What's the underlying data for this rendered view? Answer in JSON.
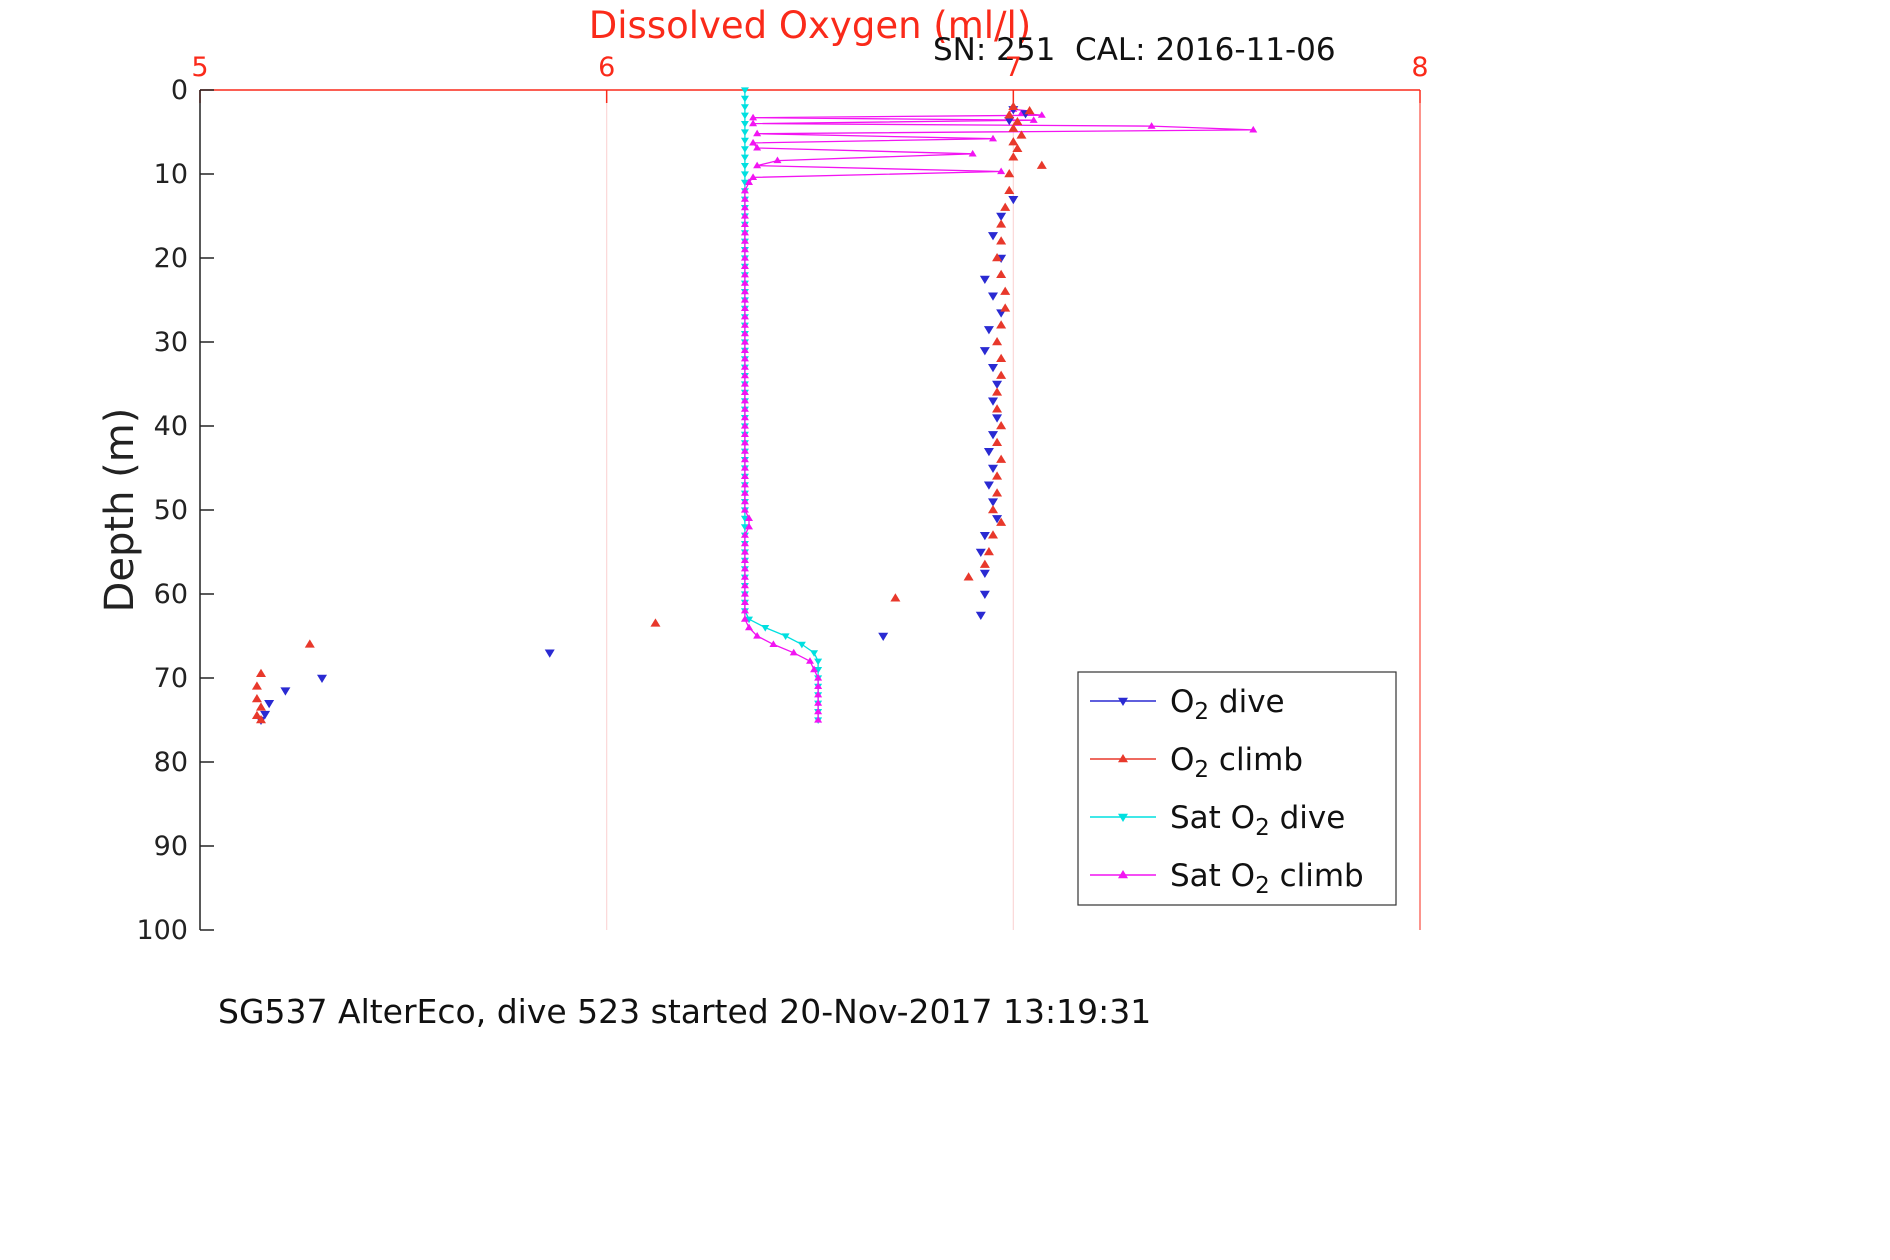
{
  "chart": {
    "title": "Dissolved Oxygen (ml/l)",
    "subtitle": "SN: 251  CAL: 2016-11-06",
    "caption": "SG537 AlterEco, dive 523 started 20-Nov-2017 13:19:31",
    "ylabel": "Depth (m)"
  },
  "chart_data": {
    "type": "scatter",
    "title": "Dissolved Oxygen (ml/l)",
    "subtitle": "SN: 251  CAL: 2016-11-06",
    "caption": "SG537 AlterEco, dive 523 started 20-Nov-2017 13:19:31",
    "xlabel": "Dissolved Oxygen (ml/l)",
    "ylabel": "Depth (m)",
    "xlim": [
      5,
      8
    ],
    "ylim": [
      0,
      100
    ],
    "y_inverted": true,
    "x_ticks": [
      5,
      6,
      7,
      8
    ],
    "y_ticks": [
      0,
      10,
      20,
      30,
      40,
      50,
      60,
      70,
      80,
      90,
      100
    ],
    "grid_x": [
      6,
      7
    ],
    "colors": {
      "axis_x": "#fa2a1a",
      "axis_y": "#222222",
      "grid": "#fbd7d7",
      "text": "#111111"
    },
    "draw_order": [
      2,
      3,
      0,
      1
    ],
    "series": [
      {
        "id": "o2-dive",
        "name": "O2 dive",
        "color": "#2a2ad2",
        "marker": "down",
        "marker_size": 5,
        "line": false,
        "points": [
          [
            2.3,
            7.0
          ],
          [
            2.8,
            7.03
          ],
          [
            3.6,
            6.99
          ],
          [
            13,
            7.0
          ],
          [
            15,
            6.97
          ],
          [
            17.3,
            6.95
          ],
          [
            20,
            6.97
          ],
          [
            22.5,
            6.93
          ],
          [
            24.5,
            6.95
          ],
          [
            26.5,
            6.97
          ],
          [
            28.5,
            6.94
          ],
          [
            31,
            6.93
          ],
          [
            33,
            6.95
          ],
          [
            35,
            6.96
          ],
          [
            37,
            6.95
          ],
          [
            39,
            6.96
          ],
          [
            41,
            6.95
          ],
          [
            43,
            6.94
          ],
          [
            45,
            6.95
          ],
          [
            47,
            6.94
          ],
          [
            49,
            6.95
          ],
          [
            51,
            6.96
          ],
          [
            53,
            6.93
          ],
          [
            55,
            6.92
          ],
          [
            57.5,
            6.93
          ],
          [
            60,
            6.93
          ],
          [
            62.5,
            6.92
          ],
          [
            65,
            6.68
          ],
          [
            67,
            5.86
          ],
          [
            70,
            5.3
          ],
          [
            71.5,
            5.21
          ],
          [
            73,
            5.17
          ],
          [
            74.3,
            5.16
          ],
          [
            75,
            5.15
          ]
        ]
      },
      {
        "id": "o2-climb",
        "name": "O2 climb",
        "color": "#e8382b",
        "marker": "up",
        "marker_size": 5,
        "line": false,
        "points": [
          [
            2,
            7.0
          ],
          [
            2.5,
            7.04
          ],
          [
            3,
            6.99
          ],
          [
            3.8,
            7.01
          ],
          [
            4.6,
            7.0
          ],
          [
            5.4,
            7.02
          ],
          [
            6.2,
            7.0
          ],
          [
            7,
            7.01
          ],
          [
            8,
            7.0
          ],
          [
            9,
            7.07
          ],
          [
            10,
            6.99
          ],
          [
            12,
            6.99
          ],
          [
            14,
            6.98
          ],
          [
            16,
            6.97
          ],
          [
            18,
            6.97
          ],
          [
            20,
            6.96
          ],
          [
            22,
            6.97
          ],
          [
            24,
            6.98
          ],
          [
            26,
            6.98
          ],
          [
            28,
            6.97
          ],
          [
            30,
            6.96
          ],
          [
            32,
            6.97
          ],
          [
            34,
            6.97
          ],
          [
            36,
            6.96
          ],
          [
            38,
            6.96
          ],
          [
            40,
            6.97
          ],
          [
            42,
            6.96
          ],
          [
            44,
            6.97
          ],
          [
            46,
            6.96
          ],
          [
            48,
            6.96
          ],
          [
            50,
            6.95
          ],
          [
            51.5,
            6.97
          ],
          [
            53,
            6.95
          ],
          [
            55,
            6.94
          ],
          [
            56.5,
            6.93
          ],
          [
            58,
            6.89
          ],
          [
            60.5,
            6.71
          ],
          [
            63.5,
            6.12
          ],
          [
            66,
            5.27
          ],
          [
            69.5,
            5.15
          ],
          [
            71,
            5.14
          ],
          [
            72.5,
            5.14
          ],
          [
            73.5,
            5.15
          ],
          [
            74.5,
            5.14
          ],
          [
            75,
            5.15
          ]
        ]
      },
      {
        "id": "sat-o2-dive",
        "name": "Sat O2 dive",
        "color": "#00e0e0",
        "marker": "down",
        "marker_size": 4,
        "line": true,
        "points": [
          [
            0,
            6.34
          ],
          [
            1,
            6.34
          ],
          [
            2,
            6.34
          ],
          [
            3,
            6.34
          ],
          [
            4,
            6.34
          ],
          [
            5,
            6.34
          ],
          [
            6,
            6.34
          ],
          [
            7,
            6.34
          ],
          [
            8,
            6.34
          ],
          [
            9,
            6.34
          ],
          [
            10,
            6.34
          ],
          [
            11,
            6.34
          ],
          [
            12,
            6.34
          ],
          [
            13,
            6.34
          ],
          [
            14,
            6.34
          ],
          [
            15,
            6.34
          ],
          [
            16,
            6.34
          ],
          [
            17,
            6.34
          ],
          [
            18,
            6.34
          ],
          [
            19,
            6.34
          ],
          [
            20,
            6.34
          ],
          [
            21,
            6.34
          ],
          [
            22,
            6.34
          ],
          [
            23,
            6.34
          ],
          [
            24,
            6.34
          ],
          [
            25,
            6.34
          ],
          [
            26,
            6.34
          ],
          [
            27,
            6.34
          ],
          [
            28,
            6.34
          ],
          [
            29,
            6.34
          ],
          [
            30,
            6.34
          ],
          [
            31,
            6.34
          ],
          [
            32,
            6.34
          ],
          [
            33,
            6.34
          ],
          [
            34,
            6.34
          ],
          [
            35,
            6.34
          ],
          [
            36,
            6.34
          ],
          [
            37,
            6.34
          ],
          [
            38,
            6.34
          ],
          [
            39,
            6.34
          ],
          [
            40,
            6.34
          ],
          [
            41,
            6.34
          ],
          [
            42,
            6.34
          ],
          [
            43,
            6.34
          ],
          [
            44,
            6.34
          ],
          [
            45,
            6.34
          ],
          [
            46,
            6.34
          ],
          [
            47,
            6.34
          ],
          [
            48,
            6.34
          ],
          [
            49,
            6.34
          ],
          [
            50,
            6.34
          ],
          [
            51,
            6.34
          ],
          [
            52,
            6.34
          ],
          [
            53,
            6.34
          ],
          [
            54,
            6.34
          ],
          [
            55,
            6.34
          ],
          [
            56,
            6.34
          ],
          [
            57,
            6.34
          ],
          [
            58,
            6.34
          ],
          [
            59,
            6.34
          ],
          [
            60,
            6.34
          ],
          [
            61,
            6.34
          ],
          [
            62,
            6.34
          ],
          [
            63,
            6.35
          ],
          [
            64,
            6.39
          ],
          [
            65,
            6.44
          ],
          [
            66,
            6.48
          ],
          [
            67,
            6.51
          ],
          [
            68,
            6.52
          ],
          [
            69,
            6.52
          ],
          [
            70,
            6.52
          ],
          [
            71,
            6.52
          ],
          [
            72,
            6.52
          ],
          [
            73,
            6.52
          ],
          [
            74,
            6.52
          ],
          [
            75,
            6.52
          ]
        ]
      },
      {
        "id": "sat-o2-climb",
        "name": "Sat O2 climb",
        "color": "#f214f2",
        "marker": "up",
        "marker_size": 4,
        "line": true,
        "points": [
          [
            75,
            6.52
          ],
          [
            74,
            6.52
          ],
          [
            73,
            6.52
          ],
          [
            72,
            6.52
          ],
          [
            71,
            6.52
          ],
          [
            70,
            6.52
          ],
          [
            69,
            6.51
          ],
          [
            68,
            6.5
          ],
          [
            67,
            6.46
          ],
          [
            66,
            6.41
          ],
          [
            65,
            6.37
          ],
          [
            64,
            6.35
          ],
          [
            63,
            6.34
          ],
          [
            62,
            6.34
          ],
          [
            61,
            6.34
          ],
          [
            60,
            6.34
          ],
          [
            59,
            6.34
          ],
          [
            58,
            6.34
          ],
          [
            57,
            6.34
          ],
          [
            56,
            6.34
          ],
          [
            55,
            6.34
          ],
          [
            54,
            6.34
          ],
          [
            53,
            6.34
          ],
          [
            52,
            6.35
          ],
          [
            51,
            6.35
          ],
          [
            50,
            6.34
          ],
          [
            49,
            6.34
          ],
          [
            48,
            6.34
          ],
          [
            47,
            6.34
          ],
          [
            46,
            6.34
          ],
          [
            45,
            6.34
          ],
          [
            44,
            6.34
          ],
          [
            43,
            6.34
          ],
          [
            42,
            6.34
          ],
          [
            41,
            6.34
          ],
          [
            40,
            6.34
          ],
          [
            39,
            6.34
          ],
          [
            38,
            6.34
          ],
          [
            37,
            6.34
          ],
          [
            36,
            6.34
          ],
          [
            35,
            6.34
          ],
          [
            34,
            6.34
          ],
          [
            33,
            6.34
          ],
          [
            32,
            6.34
          ],
          [
            31,
            6.34
          ],
          [
            30,
            6.34
          ],
          [
            29,
            6.34
          ],
          [
            28,
            6.34
          ],
          [
            27,
            6.34
          ],
          [
            26,
            6.34
          ],
          [
            25,
            6.34
          ],
          [
            24,
            6.34
          ],
          [
            23,
            6.34
          ],
          [
            22,
            6.34
          ],
          [
            21,
            6.34
          ],
          [
            20,
            6.34
          ],
          [
            19,
            6.34
          ],
          [
            18,
            6.34
          ],
          [
            17,
            6.34
          ],
          [
            16,
            6.34
          ],
          [
            15,
            6.34
          ],
          [
            14,
            6.34
          ],
          [
            13,
            6.34
          ],
          [
            12,
            6.34
          ],
          [
            11,
            6.35
          ],
          [
            10.4,
            6.36
          ],
          [
            9.7,
            6.97
          ],
          [
            9,
            6.37
          ],
          [
            8.4,
            6.42
          ],
          [
            7.6,
            6.9
          ],
          [
            6.9,
            6.37
          ],
          [
            6.3,
            6.36
          ],
          [
            5.8,
            6.95
          ],
          [
            5.2,
            6.37
          ],
          [
            4.75,
            7.59
          ],
          [
            4.3,
            7.34
          ],
          [
            4,
            6.36
          ],
          [
            3.6,
            7.05
          ],
          [
            3.3,
            6.36
          ],
          [
            3,
            7.07
          ],
          [
            2.8,
            7.02
          ],
          [
            2.5,
            7.04
          ],
          [
            2.3,
            7.0
          ]
        ]
      }
    ],
    "legend": {
      "position": "bottom-right",
      "entries": [
        {
          "id": "o2-dive",
          "pre": "O",
          "sub": "2",
          "post": " dive",
          "color": "#2a2ad2",
          "marker": "down"
        },
        {
          "id": "o2-climb",
          "pre": "O",
          "sub": "2",
          "post": " climb",
          "color": "#e8382b",
          "marker": "up"
        },
        {
          "id": "sat-o2-dive",
          "pre": "Sat O",
          "sub": "2",
          "post": " dive",
          "color": "#00e0e0",
          "marker": "down"
        },
        {
          "id": "sat-o2-climb",
          "pre": "Sat O",
          "sub": "2",
          "post": " climb",
          "color": "#f214f2",
          "marker": "up"
        }
      ]
    }
  }
}
